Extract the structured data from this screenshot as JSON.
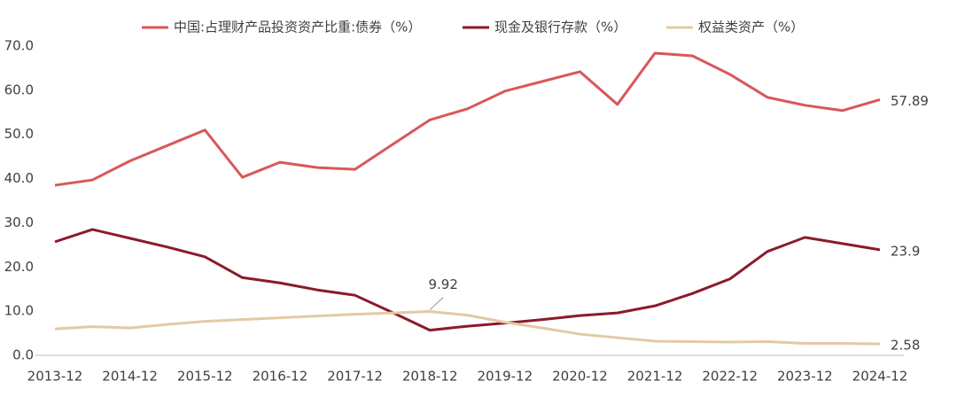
{
  "chart_data": {
    "type": "line",
    "categories": [
      "2013-12",
      null,
      "2014-12",
      null,
      "2015-12",
      null,
      "2016-12",
      null,
      "2017-12",
      null,
      "2018-12",
      null,
      "2019-12",
      null,
      "2020-12",
      null,
      "2021-12",
      null,
      "2022-12",
      null,
      "2023-12",
      null,
      "2024-12"
    ],
    "series": [
      {
        "name": "中国:占理财产品投资资产比重:债券（%）",
        "color": "#d9575a",
        "values": [
          38.5,
          39.7,
          44.0,
          47.5,
          51.0,
          40.3,
          43.7,
          42.5,
          42.1,
          47.7,
          53.3,
          55.8,
          59.8,
          62.0,
          64.2,
          56.8,
          68.4,
          67.8,
          63.6,
          58.4,
          56.6,
          55.4,
          57.89
        ],
        "value_labels": [
          null,
          null,
          null,
          null,
          null,
          null,
          null,
          null,
          null,
          null,
          null,
          null,
          null,
          null,
          null,
          null,
          null,
          null,
          null,
          null,
          null,
          null,
          "57.89"
        ]
      },
      {
        "name": "现金及银行存款（%）",
        "color": "#8b1a2b",
        "values": [
          25.7,
          28.5,
          26.5,
          24.5,
          22.3,
          17.6,
          16.4,
          14.8,
          13.6,
          9.7,
          5.7,
          6.6,
          7.3,
          8.1,
          9.0,
          9.6,
          11.2,
          14.0,
          17.3,
          23.5,
          26.7,
          25.3,
          23.9
        ],
        "value_labels": [
          null,
          null,
          null,
          null,
          null,
          null,
          null,
          null,
          null,
          null,
          null,
          null,
          null,
          null,
          null,
          null,
          null,
          null,
          null,
          null,
          null,
          null,
          "23.9"
        ]
      },
      {
        "name": "权益类资产（%）",
        "color": "#e3c9a4",
        "values": [
          6.0,
          6.5,
          6.2,
          7.0,
          7.7,
          8.1,
          8.5,
          8.9,
          9.3,
          9.6,
          9.92,
          9.1,
          7.5,
          6.2,
          4.8,
          4.0,
          3.2,
          3.1,
          3.0,
          3.1,
          2.7,
          2.7,
          2.58
        ],
        "value_labels": [
          null,
          null,
          null,
          null,
          null,
          null,
          null,
          null,
          null,
          null,
          "9.92",
          null,
          null,
          null,
          null,
          null,
          null,
          null,
          null,
          null,
          null,
          null,
          "2.58"
        ]
      }
    ],
    "ylim": [
      0,
      70
    ],
    "yticks": [
      {
        "value": 0,
        "label": "0.0"
      },
      {
        "value": 10,
        "label": "10.0"
      },
      {
        "value": 20,
        "label": "20.0"
      },
      {
        "value": 30,
        "label": "30.0"
      },
      {
        "value": 40,
        "label": "40.0"
      },
      {
        "value": 50,
        "label": "50.0"
      },
      {
        "value": 60,
        "label": "60.0"
      },
      {
        "value": 70,
        "label": "70.0"
      }
    ],
    "grid": false,
    "legend": "top"
  }
}
